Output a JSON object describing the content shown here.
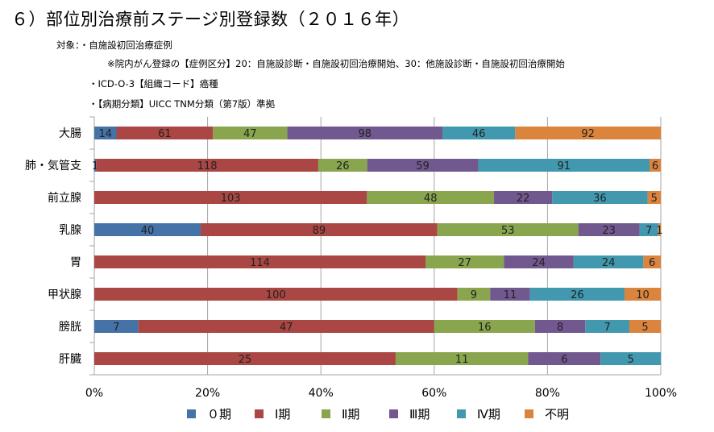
{
  "title": "６）部位別治療前ステージ別登録数（２０１６年）",
  "notes": [
    "対象：・自施設初回治療症例",
    "※院内がん登録の【症例区分】20：自施設診断・自施設初回治療開始、30：他施設診断・自施設初回治療開始",
    "・ICD-O-3【組織コード】癌種",
    "・【病期分類】UICC TNM分類（第7版）準拠"
  ],
  "colors": {
    "stage0": "#4572a7",
    "stage1": "#aa4643",
    "stage2": "#89a54e",
    "stage3": "#71588f",
    "stage4": "#4198af",
    "unknown": "#db843d",
    "grid": "#a6a6a6"
  },
  "chart_data": {
    "type": "bar",
    "orientation": "horizontal",
    "stacked": "percent",
    "title": "６）部位別治療前ステージ別登録数（２０１６年）",
    "categories": [
      "大腸",
      "肺・気管支",
      "前立腺",
      "乳腺",
      "胃",
      "甲状腺",
      "膀胱",
      "肝臓"
    ],
    "series": [
      {
        "name": "０期",
        "key": "stage0",
        "values": [
          14,
          1,
          0,
          40,
          0,
          0,
          7,
          0
        ]
      },
      {
        "name": "Ⅰ期",
        "key": "stage1",
        "values": [
          61,
          118,
          103,
          89,
          114,
          100,
          47,
          25
        ]
      },
      {
        "name": "Ⅱ期",
        "key": "stage2",
        "values": [
          47,
          26,
          48,
          53,
          27,
          9,
          16,
          11
        ]
      },
      {
        "name": "Ⅲ期",
        "key": "stage3",
        "values": [
          98,
          59,
          22,
          23,
          24,
          11,
          8,
          6
        ]
      },
      {
        "name": "Ⅳ期",
        "key": "stage4",
        "values": [
          46,
          91,
          36,
          7,
          24,
          26,
          7,
          5
        ]
      },
      {
        "name": "不明",
        "key": "unknown",
        "values": [
          92,
          6,
          5,
          1,
          6,
          10,
          5,
          0
        ]
      }
    ],
    "xlim": [
      0,
      100
    ],
    "xticks": [
      "0%",
      "20%",
      "40%",
      "60%",
      "80%",
      "100%"
    ],
    "grid": true,
    "legend": "bottom"
  }
}
